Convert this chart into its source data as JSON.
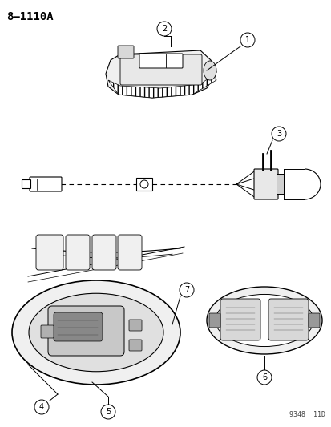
{
  "title": "8–1110A",
  "footer": "9348  11D",
  "bg_color": "#ffffff",
  "fig_width": 4.14,
  "fig_height": 5.33,
  "dpi": 100
}
